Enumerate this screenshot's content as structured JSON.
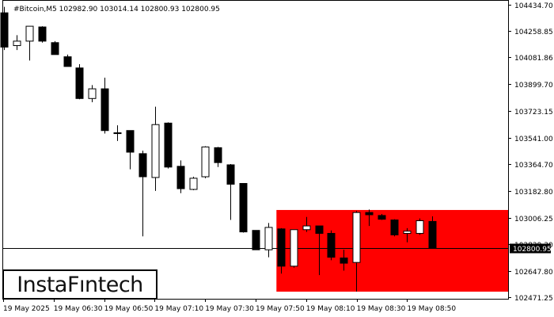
{
  "chart_data": {
    "type": "candlestick",
    "title": "#Bitcoin,M5  102982.90 103014.14 102800.93 102800.95",
    "y_ticks": [
      104434.7,
      104258.85,
      104081.86,
      103899.7,
      103723.15,
      103541.0,
      103364.7,
      103182.8,
      103006.25,
      102829.3,
      102647.8,
      102471.25
    ],
    "y_tick_labels": [
      "104434.70",
      "104258.85",
      "104081.86",
      "103899.70",
      "103723.15",
      "103541.00",
      "103364.70",
      "103182.80",
      "103006.25",
      "102829.30",
      "102647.80",
      "102471.25"
    ],
    "ylim": [
      102461.2,
      104466.0
    ],
    "x_ticks": [
      "19 May 2025",
      "19 May 06:30",
      "19 May 06:50",
      "19 May 07:10",
      "19 May 07:30",
      "19 May 07:50",
      "19 May 08:10",
      "19 May 08:30",
      "19 May 08:50"
    ],
    "current_price": 102800.95,
    "current_price_label": "102800.95",
    "zone": {
      "from_index": 22,
      "y_top": 103057,
      "y_bottom": 102509,
      "color": "#ff0000"
    },
    "candles": [
      {
        "o": 104380,
        "h": 104420,
        "l": 104130,
        "c": 104150
      },
      {
        "o": 104160,
        "h": 104230,
        "l": 104130,
        "c": 104190
      },
      {
        "o": 104190,
        "h": 104285,
        "l": 104060,
        "c": 104290
      },
      {
        "o": 104285,
        "h": 104290,
        "l": 104180,
        "c": 104190
      },
      {
        "o": 104180,
        "h": 104190,
        "l": 104100,
        "c": 104100
      },
      {
        "o": 104085,
        "h": 104100,
        "l": 104020,
        "c": 104020
      },
      {
        "o": 104010,
        "h": 104035,
        "l": 103800,
        "c": 103805
      },
      {
        "o": 103805,
        "h": 103895,
        "l": 103780,
        "c": 103870
      },
      {
        "o": 103870,
        "h": 103945,
        "l": 103570,
        "c": 103590
      },
      {
        "o": 103575,
        "h": 103625,
        "l": 103520,
        "c": 103575
      },
      {
        "o": 103590,
        "h": 103590,
        "l": 103330,
        "c": 103445
      },
      {
        "o": 103435,
        "h": 103455,
        "l": 102880,
        "c": 103280
      },
      {
        "o": 103275,
        "h": 103750,
        "l": 103185,
        "c": 103630
      },
      {
        "o": 103640,
        "h": 103645,
        "l": 103335,
        "c": 103345
      },
      {
        "o": 103350,
        "h": 103390,
        "l": 103170,
        "c": 103200
      },
      {
        "o": 103195,
        "h": 103280,
        "l": 103190,
        "c": 103270
      },
      {
        "o": 103280,
        "h": 103485,
        "l": 103270,
        "c": 103480
      },
      {
        "o": 103475,
        "h": 103480,
        "l": 103345,
        "c": 103375
      },
      {
        "o": 103360,
        "h": 103365,
        "l": 102990,
        "c": 103230
      },
      {
        "o": 103235,
        "h": 103235,
        "l": 102905,
        "c": 102910
      },
      {
        "o": 102920,
        "h": 102920,
        "l": 102790,
        "c": 102790
      },
      {
        "o": 102790,
        "h": 102970,
        "l": 102740,
        "c": 102940
      },
      {
        "o": 102930,
        "h": 102935,
        "l": 102630,
        "c": 102680
      },
      {
        "o": 102680,
        "h": 102920,
        "l": 102670,
        "c": 102925
      },
      {
        "o": 102925,
        "h": 103010,
        "l": 102910,
        "c": 102950
      },
      {
        "o": 102950,
        "h": 102950,
        "l": 102620,
        "c": 102900
      },
      {
        "o": 102900,
        "h": 102920,
        "l": 102720,
        "c": 102740
      },
      {
        "o": 102735,
        "h": 102790,
        "l": 102650,
        "c": 102700
      },
      {
        "o": 102705,
        "h": 103050,
        "l": 102510,
        "c": 103040
      },
      {
        "o": 103040,
        "h": 103060,
        "l": 102950,
        "c": 103025
      },
      {
        "o": 103020,
        "h": 103030,
        "l": 102990,
        "c": 102995
      },
      {
        "o": 102990,
        "h": 102995,
        "l": 102880,
        "c": 102890
      },
      {
        "o": 102900,
        "h": 102935,
        "l": 102840,
        "c": 102915
      },
      {
        "o": 102900,
        "h": 103000,
        "l": 102890,
        "c": 102985
      },
      {
        "o": 102980,
        "h": 103014,
        "l": 102800,
        "c": 102801
      }
    ]
  },
  "logo": {
    "text": "InstaFıntech"
  }
}
